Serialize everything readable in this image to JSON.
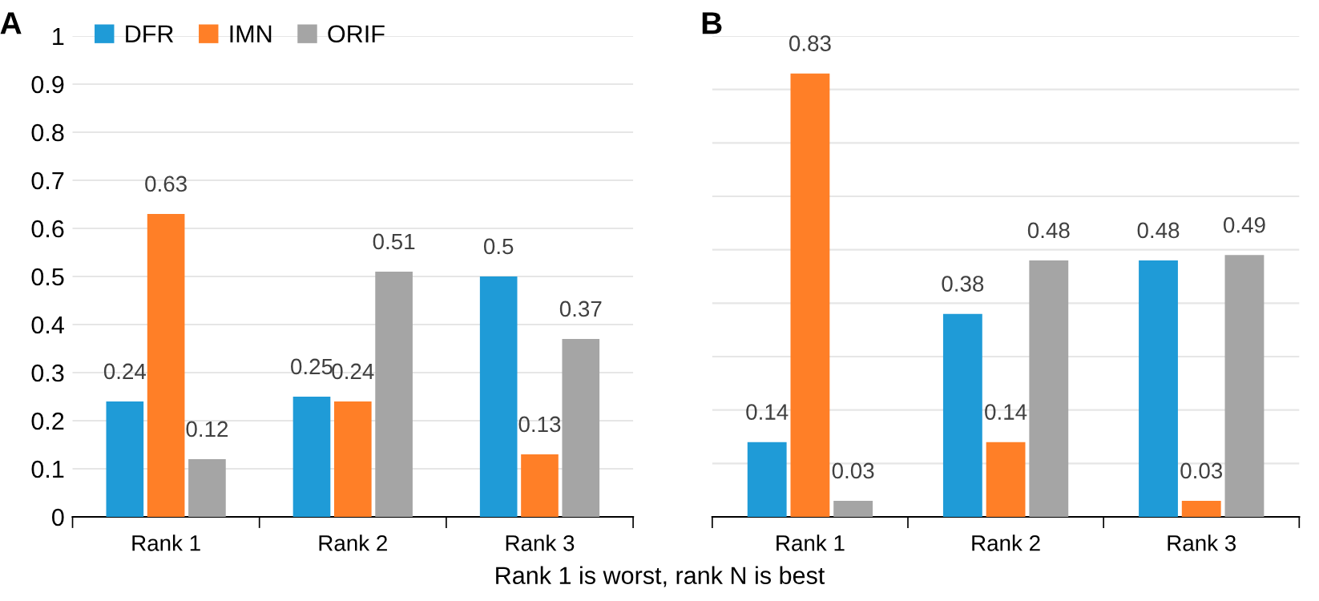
{
  "chart_data": [
    {
      "type": "bar",
      "title": "A",
      "categories": [
        "Rank 1",
        "Rank 2",
        "Rank 3"
      ],
      "series": [
        {
          "name": "DFR",
          "color": "#1f9bd7",
          "values": [
            0.24,
            0.25,
            0.5
          ]
        },
        {
          "name": "IMN",
          "color": "#ff7f27",
          "values": [
            0.63,
            0.24,
            0.13
          ]
        },
        {
          "name": "ORIF",
          "color": "#a5a5a5",
          "values": [
            0.12,
            0.51,
            0.37
          ]
        }
      ],
      "ylim": [
        0,
        1
      ],
      "yticks": [
        0,
        0.1,
        0.2,
        0.3,
        0.4,
        0.5,
        0.6,
        0.7,
        0.8,
        0.9,
        1
      ],
      "grid": "y",
      "legend": "top left",
      "data_labels": true,
      "annotations": [
        "Rank 1 is worst, rank N is best"
      ]
    },
    {
      "type": "bar",
      "title": "B",
      "categories": [
        "Rank 1",
        "Rank 2",
        "Rank 3"
      ],
      "series": [
        {
          "color": "#1f9bd7",
          "values": [
            0.14,
            0.38,
            0.48
          ]
        },
        {
          "color": "#ff7f27",
          "values": [
            0.83,
            0.14,
            0.03
          ]
        },
        {
          "color": "#a5a5a5",
          "values": [
            0.03,
            0.48,
            0.49
          ]
        }
      ],
      "ylim": [
        0,
        0.9
      ],
      "yticks": [
        {
          "value": 0,
          "label": null
        },
        {
          "value": 0.1,
          "label": null
        },
        {
          "value": 0.2,
          "label": null
        },
        {
          "value": 0.3,
          "label": null
        },
        {
          "value": 0.4,
          "label": null
        },
        {
          "value": 0.5,
          "label": null
        },
        {
          "value": 0.6,
          "label": null
        },
        {
          "value": 0.7,
          "label": null
        },
        {
          "value": 0.8,
          "label": null
        },
        {
          "value": 0.9,
          "label": null
        }
      ],
      "grid": "y",
      "data_labels": true,
      "tick_labels": "x"
    }
  ]
}
